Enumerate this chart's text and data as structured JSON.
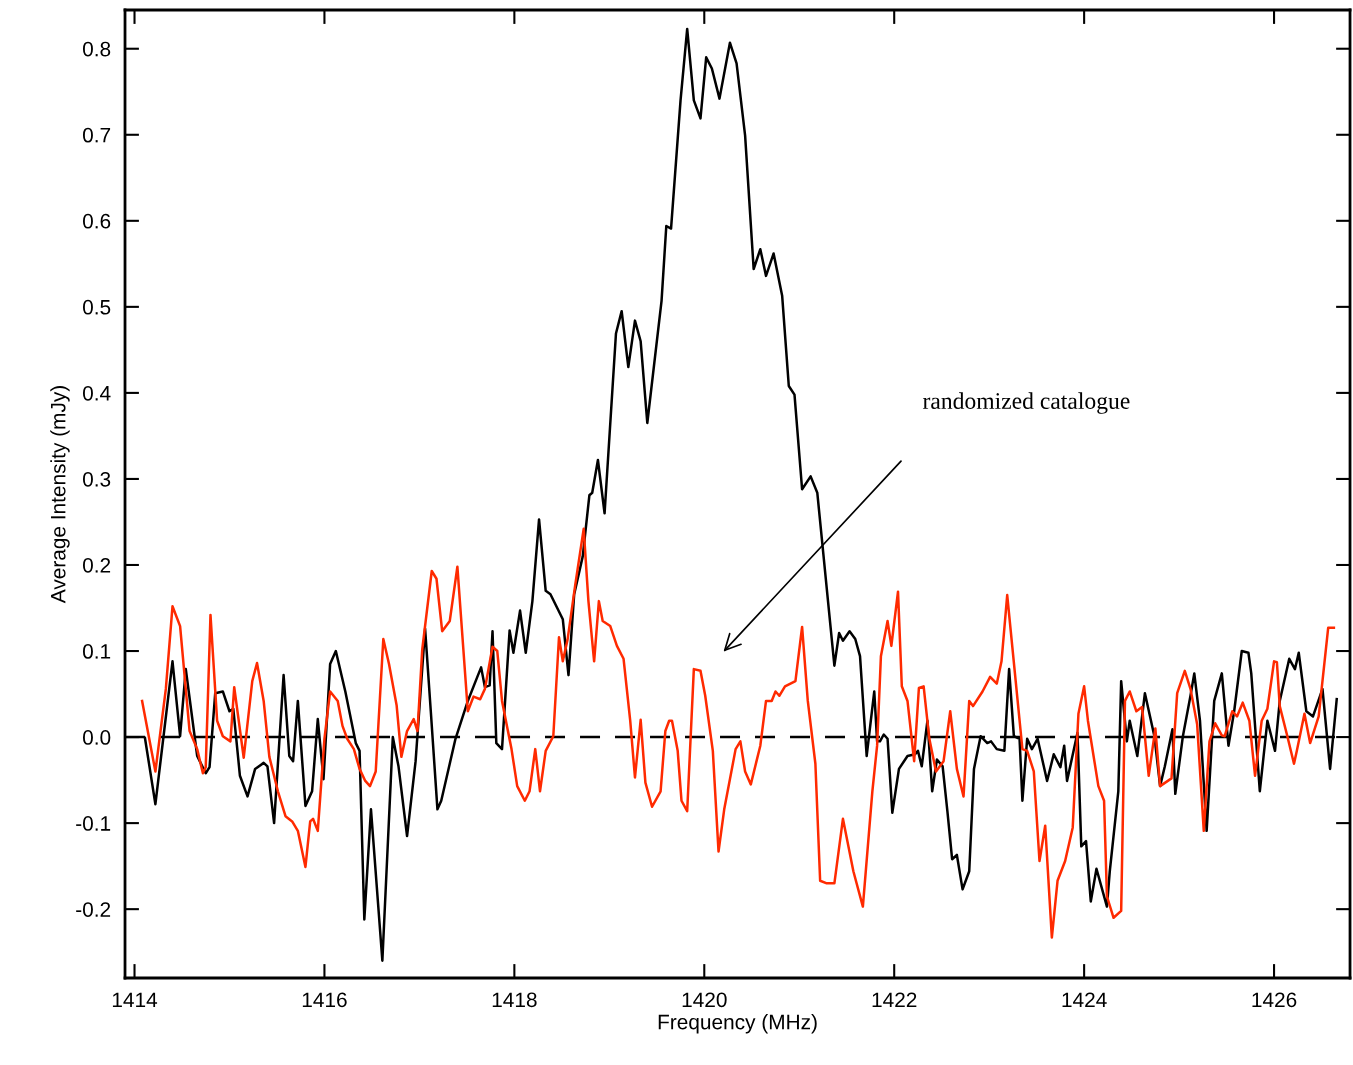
{
  "chart_data": {
    "type": "line",
    "xlabel": "Frequency (MHz)",
    "ylabel": "Average Intensity (mJy)",
    "xlim": [
      1413.9,
      1426.8
    ],
    "ylim": [
      -0.28,
      0.845
    ],
    "xticks": [
      1414,
      1416,
      1418,
      1420,
      1422,
      1424,
      1426
    ],
    "yticks": [
      -0.2,
      -0.1,
      {
        "value": 0,
        "label": "0.0"
      },
      0.1,
      0.2,
      0.3,
      0.4,
      0.5,
      0.6,
      0.7,
      0.8
    ],
    "grid": false,
    "marker": "none",
    "line_style": "solid",
    "ref_lines": [
      {
        "axis": "y",
        "value": 0,
        "color": "#000000",
        "line_style": "dashed"
      }
    ],
    "annotations": [
      "randomized catalogue"
    ],
    "series": [
      {
        "color": "#000000",
        "x": [
          1414.11,
          1414.22,
          1414.4,
          1414.48,
          1414.54,
          1414.66,
          1414.75,
          1414.79,
          1414.85,
          1414.93,
          1415.0,
          1415.04,
          1415.11,
          1415.19,
          1415.27,
          1415.36,
          1415.4,
          1415.47,
          1415.57,
          1415.63,
          1415.67,
          1415.72,
          1415.8,
          1415.87,
          1415.93,
          1415.99,
          1416.06,
          1416.12,
          1416.22,
          1416.33,
          1416.37,
          1416.42,
          1416.49,
          1416.61,
          1416.72,
          1416.78,
          1416.87,
          1416.96,
          1417.06,
          1417.12,
          1417.19,
          1417.23,
          1417.38,
          1417.51,
          1417.61,
          1417.65,
          1417.69,
          1417.74,
          1417.77,
          1417.81,
          1417.87,
          1417.95,
          1417.99,
          1418.06,
          1418.12,
          1418.19,
          1418.26,
          1418.33,
          1418.38,
          1418.51,
          1418.57,
          1418.63,
          1418.72,
          1418.79,
          1418.82,
          1418.88,
          1418.95,
          1419.07,
          1419.13,
          1419.2,
          1419.27,
          1419.33,
          1419.4,
          1419.55,
          1419.6,
          1419.65,
          1419.75,
          1419.82,
          1419.89,
          1419.96,
          1420.02,
          1420.08,
          1420.16,
          1420.27,
          1420.34,
          1420.43,
          1420.52,
          1420.59,
          1420.65,
          1420.73,
          1420.82,
          1420.89,
          1420.95,
          1421.03,
          1421.12,
          1421.19,
          1421.37,
          1421.42,
          1421.46,
          1421.53,
          1421.59,
          1421.64,
          1421.71,
          1421.79,
          1421.82,
          1421.85,
          1421.89,
          1421.93,
          1421.98,
          1422.05,
          1422.14,
          1422.22,
          1422.25,
          1422.29,
          1422.35,
          1422.4,
          1422.45,
          1422.51,
          1422.56,
          1422.61,
          1422.66,
          1422.72,
          1422.79,
          1422.84,
          1422.91,
          1422.98,
          1423.02,
          1423.08,
          1423.16,
          1423.21,
          1423.26,
          1423.32,
          1423.35,
          1423.4,
          1423.45,
          1423.51,
          1423.61,
          1423.68,
          1423.75,
          1423.79,
          1423.82,
          1423.93,
          1423.97,
          1424.02,
          1424.07,
          1424.13,
          1424.24,
          1424.27,
          1424.36,
          1424.39,
          1424.45,
          1424.48,
          1424.56,
          1424.64,
          1424.74,
          1424.8,
          1424.85,
          1424.93,
          1424.96,
          1425.04,
          1425.12,
          1425.16,
          1425.22,
          1425.29,
          1425.37,
          1425.45,
          1425.52,
          1425.58,
          1425.66,
          1425.73,
          1425.76,
          1425.85,
          1425.93,
          1426.01,
          1426.06,
          1426.16,
          1426.22,
          1426.26,
          1426.34,
          1426.41,
          1426.51,
          1426.59,
          1426.66
        ],
        "values": [
          -0.001,
          -0.078,
          0.088,
          0.001,
          0.079,
          -0.022,
          -0.042,
          -0.035,
          0.051,
          0.053,
          0.03,
          0.033,
          -0.045,
          -0.069,
          -0.037,
          -0.03,
          -0.034,
          -0.1,
          0.072,
          -0.022,
          -0.028,
          0.042,
          -0.08,
          -0.063,
          0.021,
          -0.049,
          0.085,
          0.1,
          0.053,
          -0.007,
          -0.016,
          -0.212,
          -0.084,
          -0.26,
          0.0,
          -0.034,
          -0.115,
          -0.028,
          0.126,
          0.03,
          -0.084,
          -0.074,
          -0.002,
          0.042,
          0.07,
          0.081,
          0.058,
          0.06,
          0.123,
          -0.007,
          -0.014,
          0.124,
          0.098,
          0.147,
          0.098,
          0.158,
          0.253,
          0.17,
          0.166,
          0.137,
          0.072,
          0.166,
          0.21,
          0.281,
          0.284,
          0.322,
          0.26,
          0.469,
          0.495,
          0.43,
          0.484,
          0.46,
          0.365,
          0.507,
          0.594,
          0.591,
          0.74,
          0.823,
          0.74,
          0.719,
          0.79,
          0.777,
          0.742,
          0.807,
          0.783,
          0.699,
          0.544,
          0.567,
          0.536,
          0.562,
          0.513,
          0.408,
          0.398,
          0.288,
          0.303,
          0.284,
          0.083,
          0.121,
          0.112,
          0.123,
          0.114,
          0.094,
          -0.022,
          0.053,
          -0.005,
          -0.005,
          0.003,
          -0.002,
          -0.088,
          -0.037,
          -0.022,
          -0.02,
          -0.016,
          -0.034,
          0.019,
          -0.063,
          -0.026,
          -0.034,
          -0.086,
          -0.142,
          -0.137,
          -0.177,
          -0.156,
          -0.037,
          0.001,
          -0.007,
          -0.005,
          -0.014,
          -0.016,
          0.079,
          0.001,
          -0.002,
          -0.074,
          -0.002,
          -0.014,
          -0.002,
          -0.051,
          -0.02,
          -0.035,
          -0.01,
          -0.051,
          0.005,
          -0.127,
          -0.121,
          -0.191,
          -0.153,
          -0.197,
          -0.156,
          -0.063,
          0.065,
          -0.005,
          0.019,
          -0.022,
          0.051,
          0.001,
          -0.057,
          -0.034,
          0.009,
          -0.066,
          0.001,
          0.048,
          0.074,
          0.019,
          -0.109,
          0.042,
          0.074,
          -0.01,
          0.03,
          0.1,
          0.098,
          0.074,
          -0.063,
          0.019,
          -0.016,
          0.042,
          0.091,
          0.079,
          0.098,
          0.03,
          0.024,
          0.056,
          -0.037,
          0.044
        ]
      },
      {
        "color": "#ff2a00",
        "x": [
          1414.08,
          1414.22,
          1414.33,
          1414.4,
          1414.48,
          1414.58,
          1414.66,
          1414.72,
          1414.75,
          1414.8,
          1414.87,
          1414.93,
          1415.01,
          1415.05,
          1415.15,
          1415.24,
          1415.29,
          1415.36,
          1415.42,
          1415.51,
          1415.59,
          1415.66,
          1415.72,
          1415.8,
          1415.85,
          1415.88,
          1415.93,
          1416.0,
          1416.06,
          1416.14,
          1416.19,
          1416.24,
          1416.31,
          1416.37,
          1416.43,
          1416.48,
          1416.54,
          1416.62,
          1416.68,
          1416.76,
          1416.81,
          1416.87,
          1416.94,
          1416.98,
          1417.03,
          1417.13,
          1417.18,
          1417.24,
          1417.32,
          1417.4,
          1417.51,
          1417.57,
          1417.64,
          1417.69,
          1417.77,
          1417.82,
          1417.87,
          1417.97,
          1418.03,
          1418.11,
          1418.16,
          1418.22,
          1418.27,
          1418.33,
          1418.41,
          1418.47,
          1418.51,
          1418.56,
          1418.64,
          1418.73,
          1418.78,
          1418.84,
          1418.89,
          1418.93,
          1419.01,
          1419.08,
          1419.15,
          1419.22,
          1419.27,
          1419.33,
          1419.38,
          1419.45,
          1419.54,
          1419.59,
          1419.63,
          1419.66,
          1419.72,
          1419.76,
          1419.82,
          1419.89,
          1419.96,
          1420.01,
          1420.09,
          1420.15,
          1420.21,
          1420.27,
          1420.33,
          1420.38,
          1420.43,
          1420.49,
          1420.55,
          1420.59,
          1420.65,
          1420.71,
          1420.75,
          1420.79,
          1420.85,
          1420.96,
          1421.03,
          1421.09,
          1421.17,
          1421.22,
          1421.29,
          1421.37,
          1421.46,
          1421.57,
          1421.67,
          1421.77,
          1421.82,
          1421.86,
          1421.93,
          1421.97,
          1422.04,
          1422.08,
          1422.14,
          1422.21,
          1422.26,
          1422.31,
          1422.37,
          1422.44,
          1422.52,
          1422.59,
          1422.66,
          1422.73,
          1422.79,
          1422.83,
          1422.93,
          1423.01,
          1423.08,
          1423.13,
          1423.19,
          1423.35,
          1423.4,
          1423.47,
          1423.53,
          1423.59,
          1423.66,
          1423.72,
          1423.8,
          1423.88,
          1423.94,
          1424.0,
          1424.04,
          1424.15,
          1424.21,
          1424.24,
          1424.31,
          1424.39,
          1424.43,
          1424.48,
          1424.55,
          1424.61,
          1424.68,
          1424.75,
          1424.8,
          1424.92,
          1424.98,
          1425.06,
          1425.12,
          1425.19,
          1425.26,
          1425.32,
          1425.38,
          1425.45,
          1425.48,
          1425.56,
          1425.61,
          1425.67,
          1425.74,
          1425.8,
          1425.87,
          1425.93,
          1426.0,
          1426.03,
          1426.06,
          1426.14,
          1426.21,
          1426.24,
          1426.32,
          1426.38,
          1426.47,
          1426.57,
          1426.63
        ],
        "values": [
          0.042,
          -0.04,
          0.056,
          0.152,
          0.129,
          0.007,
          -0.014,
          -0.042,
          -0.035,
          0.142,
          0.019,
          0.001,
          -0.005,
          0.058,
          -0.024,
          0.065,
          0.086,
          0.042,
          -0.023,
          -0.063,
          -0.092,
          -0.098,
          -0.109,
          -0.151,
          -0.098,
          -0.095,
          -0.109,
          -0.002,
          0.053,
          0.042,
          0.013,
          -0.002,
          -0.014,
          -0.037,
          -0.051,
          -0.057,
          -0.04,
          0.114,
          0.085,
          0.037,
          -0.023,
          0.007,
          0.021,
          0.007,
          0.102,
          0.193,
          0.184,
          0.123,
          0.135,
          0.198,
          0.03,
          0.047,
          0.044,
          0.056,
          0.105,
          0.1,
          0.042,
          -0.014,
          -0.057,
          -0.074,
          -0.063,
          -0.014,
          -0.063,
          -0.016,
          0.001,
          0.116,
          0.088,
          0.113,
          0.176,
          0.242,
          0.158,
          0.088,
          0.158,
          0.135,
          0.129,
          0.106,
          0.091,
          0.019,
          -0.047,
          0.02,
          -0.053,
          -0.081,
          -0.063,
          0.007,
          0.019,
          0.019,
          -0.016,
          -0.074,
          -0.086,
          0.079,
          0.077,
          0.048,
          -0.016,
          -0.133,
          -0.084,
          -0.049,
          -0.014,
          -0.005,
          -0.04,
          -0.055,
          -0.028,
          -0.01,
          0.042,
          0.042,
          0.053,
          0.048,
          0.059,
          0.065,
          0.128,
          0.042,
          -0.031,
          -0.167,
          -0.17,
          -0.17,
          -0.095,
          -0.156,
          -0.197,
          -0.063,
          -0.01,
          0.094,
          0.135,
          0.106,
          0.169,
          0.059,
          0.042,
          -0.028,
          0.057,
          0.059,
          -0.002,
          -0.04,
          -0.028,
          0.03,
          -0.037,
          -0.069,
          0.042,
          0.036,
          0.053,
          0.07,
          0.062,
          0.088,
          0.165,
          -0.014,
          -0.016,
          -0.04,
          -0.144,
          -0.103,
          -0.233,
          -0.167,
          -0.144,
          -0.105,
          0.027,
          0.059,
          0.019,
          -0.057,
          -0.074,
          -0.185,
          -0.21,
          -0.202,
          0.042,
          0.053,
          0.03,
          0.035,
          -0.045,
          0.01,
          -0.057,
          -0.048,
          0.051,
          0.077,
          0.056,
          0.015,
          -0.109,
          -0.005,
          0.016,
          0.002,
          0.001,
          0.03,
          0.024,
          0.04,
          0.019,
          -0.045,
          0.019,
          0.033,
          0.088,
          0.087,
          0.036,
          0.001,
          -0.031,
          -0.016,
          0.027,
          -0.007,
          0.024,
          0.127,
          0.127
        ]
      }
    ]
  }
}
